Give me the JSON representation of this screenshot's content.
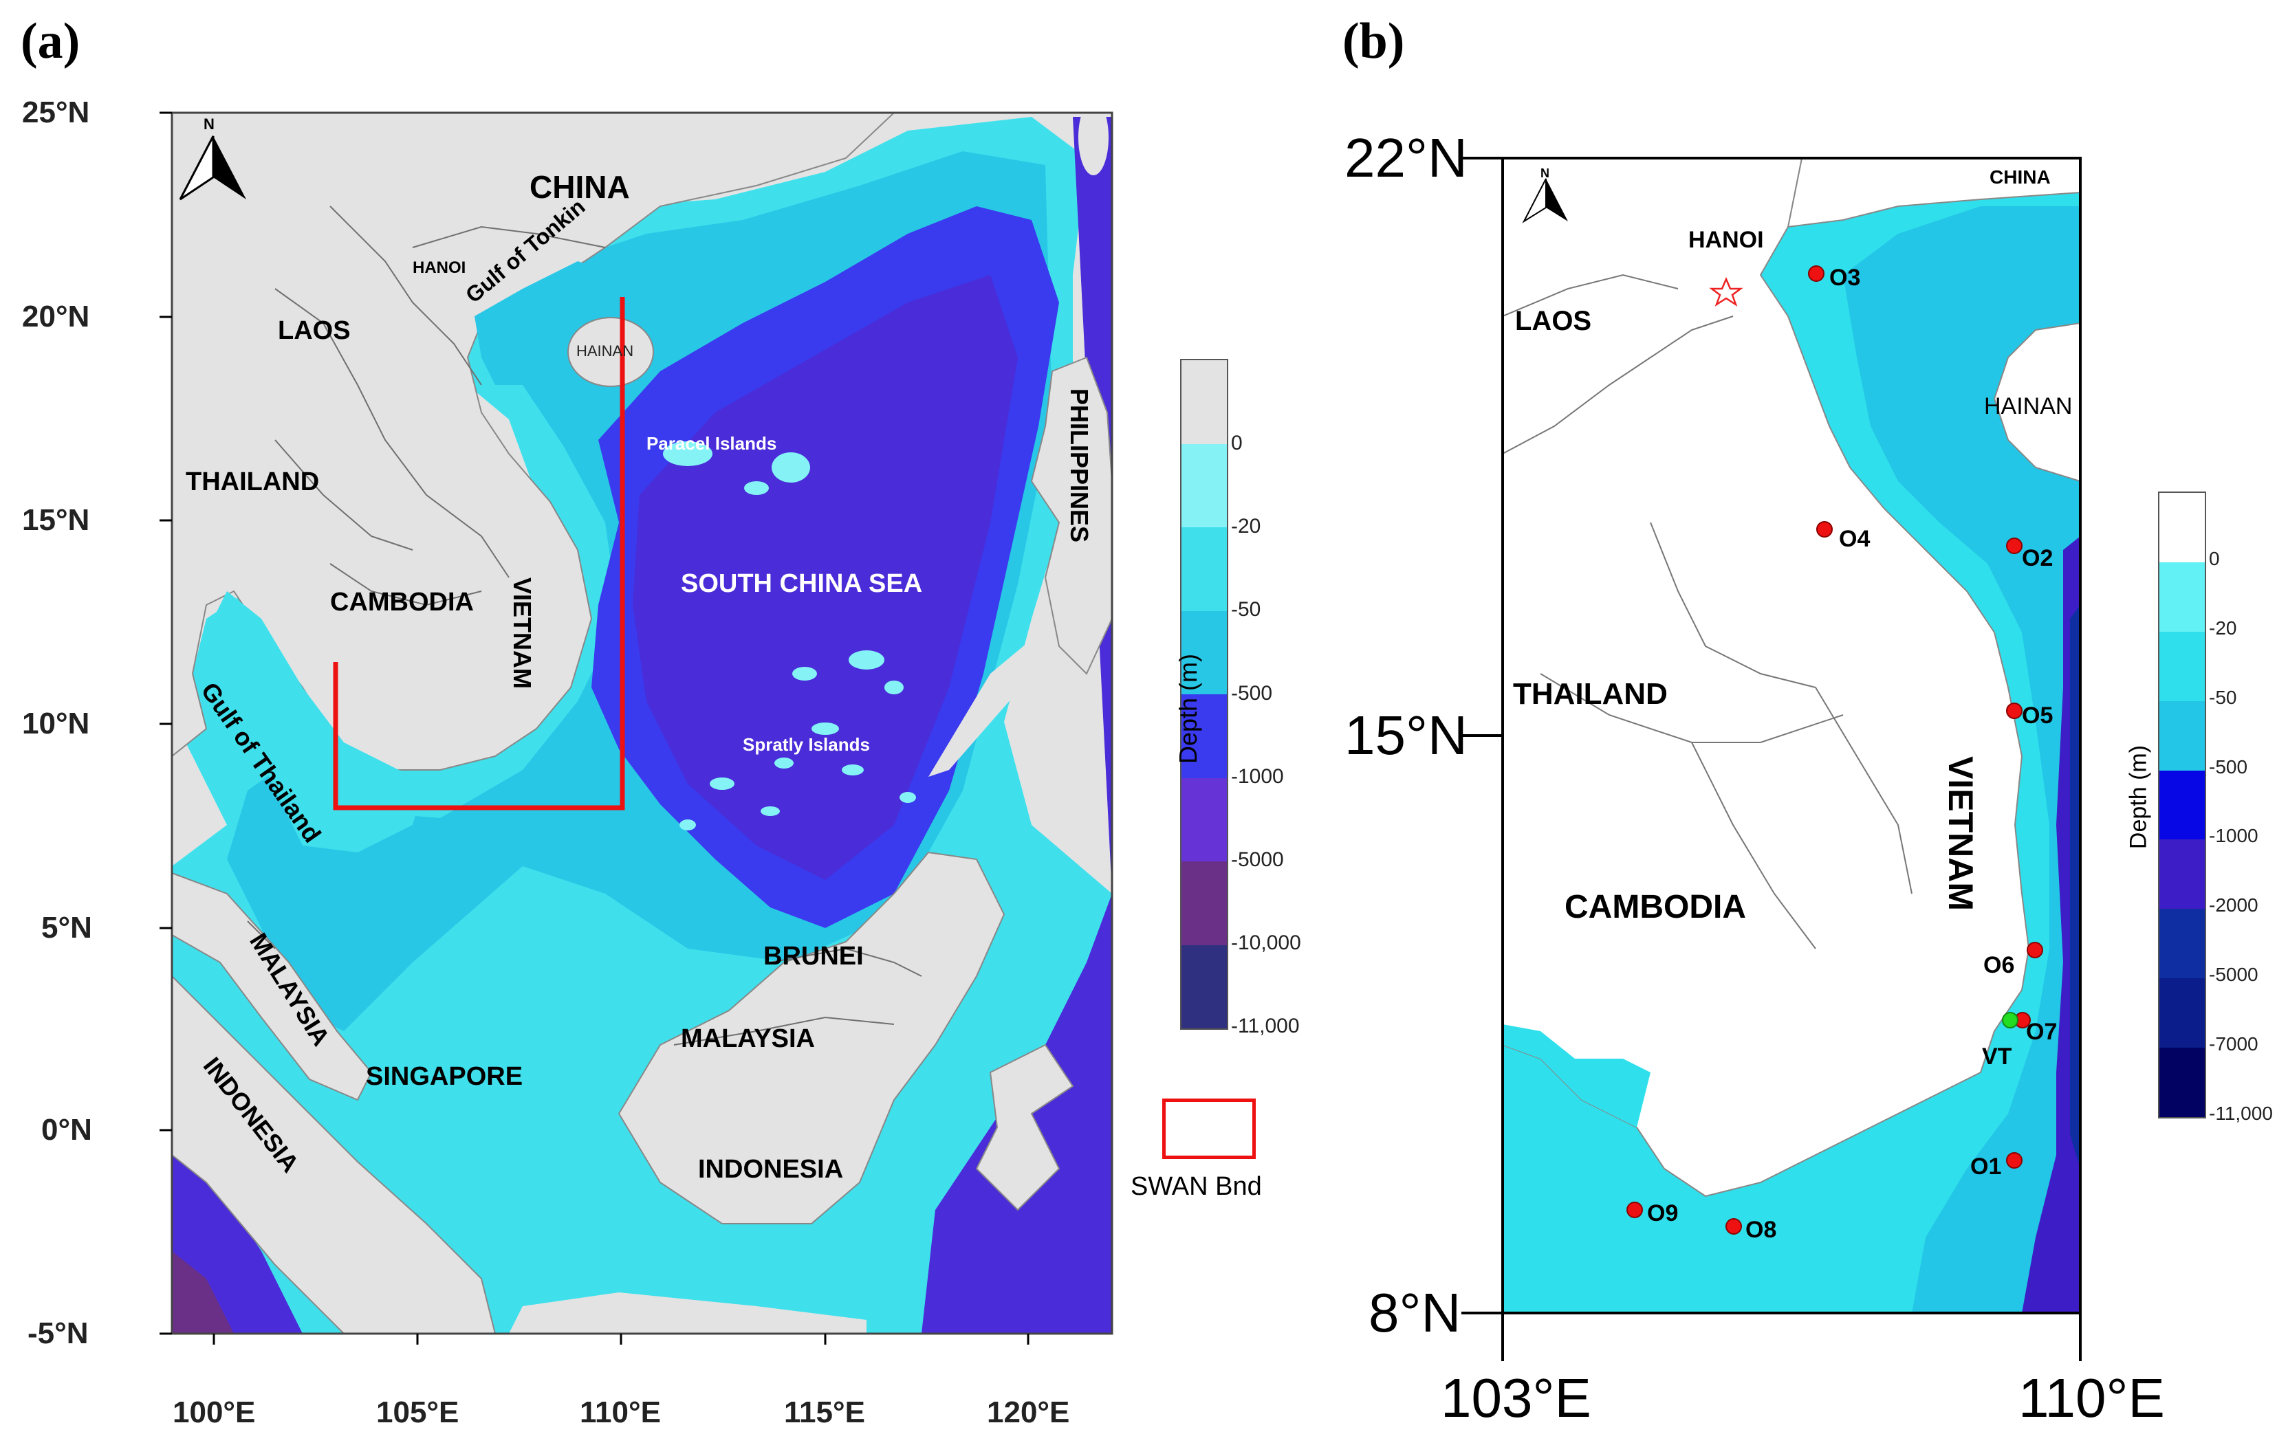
{
  "panel_a": {
    "letter": "(a)",
    "lat_ticks": [
      "25°N",
      "20°N",
      "15°N",
      "10°N",
      "5°N",
      "0°N",
      "-5°N"
    ],
    "lon_ticks": [
      "100°E",
      "105°E",
      "110°E",
      "115°E",
      "120°E"
    ],
    "north_label": "N",
    "labels": {
      "china": "CHINA",
      "hanoi": "HANOI",
      "laos": "LAOS",
      "hainan": "HAINAN",
      "gulf_tonkin": "Gulf of Tonkin",
      "paracel": "Paracel Islands",
      "thailand": "THAILAND",
      "vietnam": "VIETNAM",
      "cambodia": "CAMBODIA",
      "scs": "SOUTH CHINA SEA",
      "philippines": "PHILIPPINES",
      "gulf_thailand": "Gulf of Thailand",
      "spratly": "Spratly Islands",
      "brunei": "BRUNEI",
      "malaysia_w": "MALAYSIA",
      "malaysia_e": "MALAYSIA",
      "singapore": "SINGAPORE",
      "indonesia_w": "INDONESIA",
      "indonesia_e": "INDONESIA"
    },
    "colorbar": {
      "title": "Depth (m)",
      "ticks": [
        "0",
        "-20",
        "-50",
        "-500",
        "-1000",
        "-5000",
        "-10,000",
        "-11,000"
      ],
      "colors": [
        "#e3e3e3",
        "#85f3f6",
        "#3fe0ec",
        "#29c7e6",
        "#3a3aee",
        "#6633d6",
        "#6a3088",
        "#303080"
      ]
    },
    "legend_label": "SWAN Bnd"
  },
  "panel_b": {
    "letter": "(b)",
    "lat_ticks": [
      "22°N",
      "15°N",
      "8°N"
    ],
    "lon_ticks": [
      "103°E",
      "110°E"
    ],
    "north_label": "N",
    "labels": {
      "china": "CHINA",
      "hanoi": "HANOI",
      "laos": "LAOS",
      "hainan": "HAINAN",
      "thailand": "THAILAND",
      "vietnam": "VIETNAM",
      "cambodia": "CAMBODIA"
    },
    "stations": [
      {
        "name": "O3",
        "lon": 106.8,
        "lat": 20.6
      },
      {
        "name": "O4",
        "lon": 106.9,
        "lat": 17.5
      },
      {
        "name": "O2",
        "lon": 109.2,
        "lat": 17.3
      },
      {
        "name": "O5",
        "lon": 109.2,
        "lat": 15.3
      },
      {
        "name": "O6",
        "lon": 109.45,
        "lat": 12.4
      },
      {
        "name": "O7",
        "lon": 109.3,
        "lat": 11.55
      },
      {
        "name": "O1",
        "lon": 109.2,
        "lat": 9.85
      },
      {
        "name": "O9",
        "lon": 104.6,
        "lat": 9.25
      },
      {
        "name": "O8",
        "lon": 105.8,
        "lat": 9.05
      }
    ],
    "vt_station": {
      "name": "VT",
      "lon": 109.15,
      "lat": 11.55
    },
    "colorbar": {
      "title": "Depth (m)",
      "ticks": [
        "0",
        "-20",
        "-50",
        "-500",
        "-1000",
        "-2000",
        "-5000",
        "-7000",
        "-11,000"
      ],
      "colors": [
        "#ffffff",
        "#62f2f6",
        "#2fe0ec",
        "#23c6e6",
        "#0707e6",
        "#3d1dc6",
        "#0e2ea2",
        "#0a1d8a",
        "#020262"
      ]
    }
  }
}
